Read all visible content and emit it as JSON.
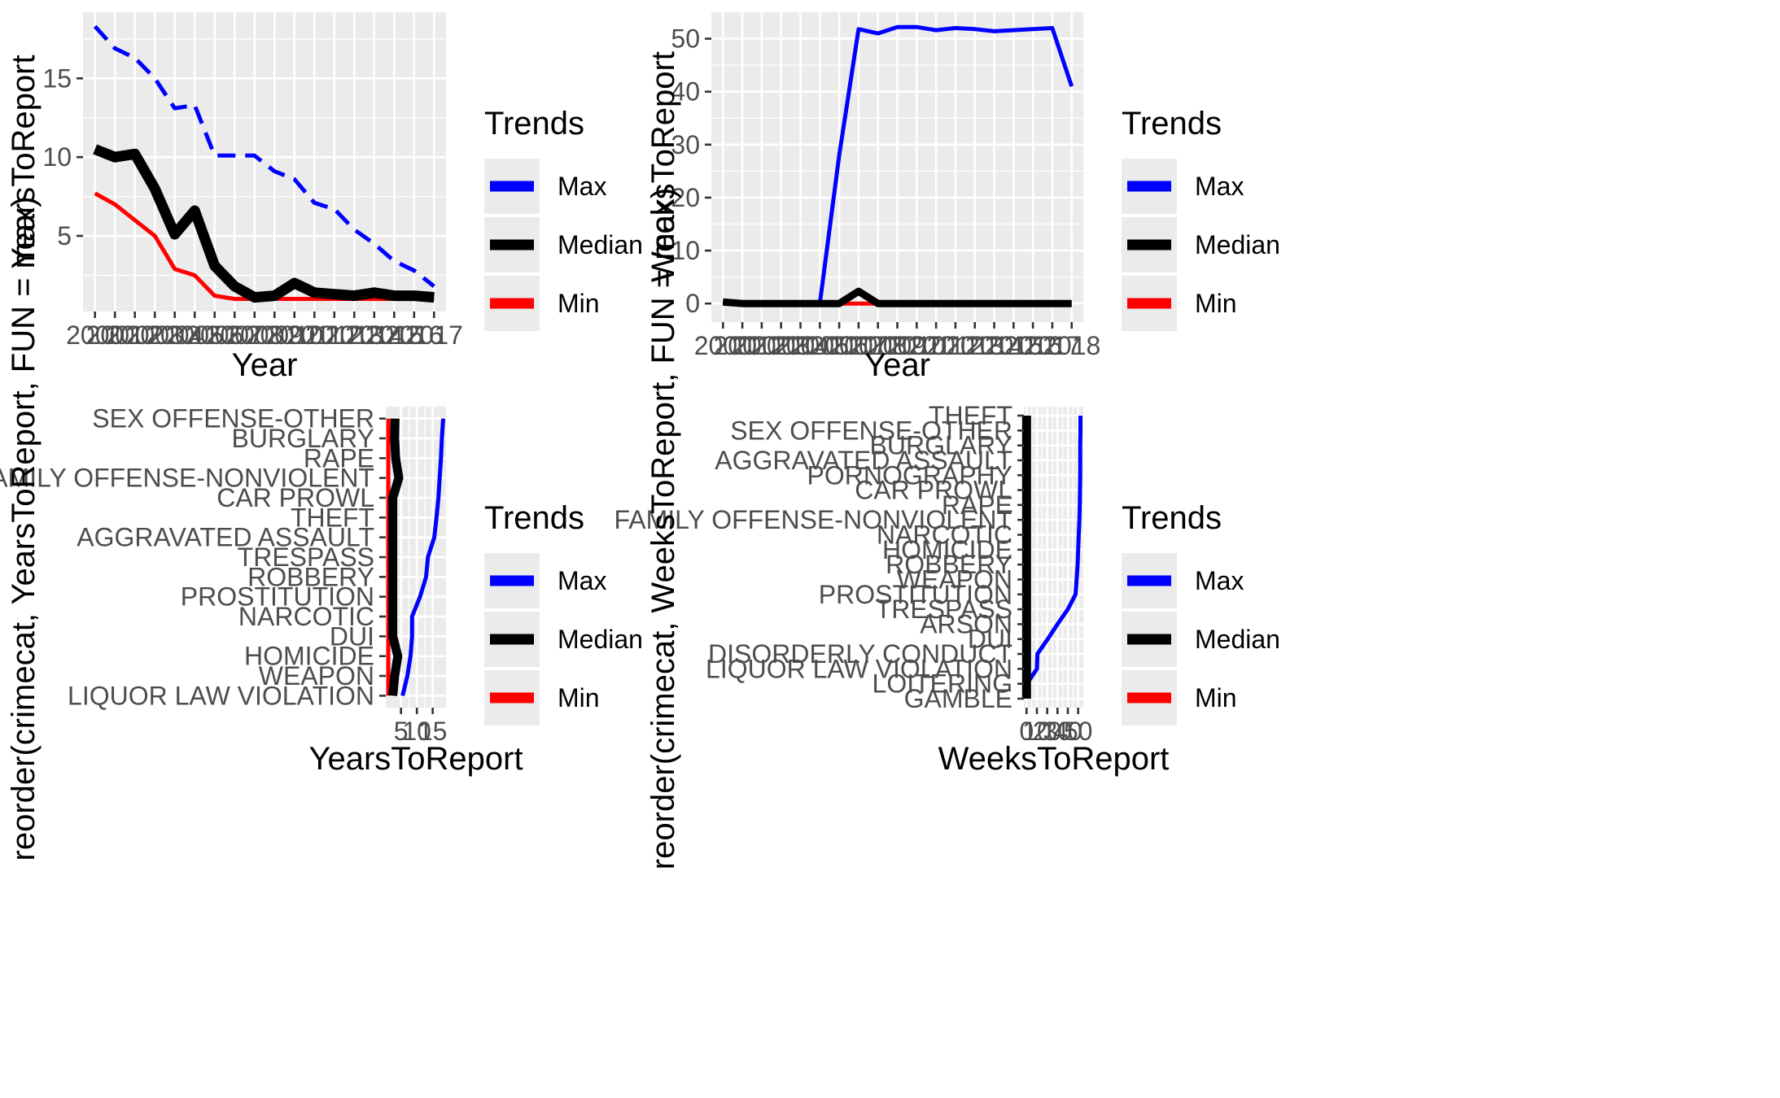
{
  "legend": {
    "title": "Trends",
    "items": [
      {
        "label": "Max",
        "color": "#0000FF"
      },
      {
        "label": "Median",
        "color": "#000000"
      },
      {
        "label": "Min",
        "color": "#FF0000"
      }
    ]
  },
  "chart_data": [
    {
      "type": "line",
      "xlabel": "Year",
      "ylabel": "YearsToReport",
      "x": [
        2000,
        2001,
        2002,
        2003,
        2004,
        2005,
        2006,
        2007,
        2008,
        2009,
        2010,
        2011,
        2012,
        2013,
        2014,
        2015,
        2016,
        2017
      ],
      "xticks": [
        "2000",
        "2001",
        "2002",
        "2003",
        "2004",
        "2005",
        "2006",
        "2007",
        "2008",
        "2009",
        "2010",
        "2011",
        "2012",
        "2013",
        "2014",
        "2015",
        "2016",
        "2017"
      ],
      "yticks": [
        5,
        10,
        15
      ],
      "ylim": [
        0.2,
        19.2
      ],
      "series": [
        {
          "name": "Max",
          "color": "#0000FF",
          "dash": true,
          "values": [
            18.3,
            16.9,
            16.3,
            15.0,
            13.1,
            13.3,
            10.1,
            10.1,
            10.1,
            9.1,
            8.6,
            7.1,
            6.7,
            5.4,
            4.5,
            3.4,
            2.8,
            1.8
          ]
        },
        {
          "name": "Median",
          "color": "#000000",
          "dash": false,
          "values": [
            10.5,
            10.0,
            10.2,
            8.0,
            5.1,
            6.6,
            3.1,
            1.8,
            1.1,
            1.2,
            2.0,
            1.4,
            1.3,
            1.2,
            1.4,
            1.2,
            1.2,
            1.1
          ]
        },
        {
          "name": "Min",
          "color": "#FF0000",
          "dash": false,
          "values": [
            7.7,
            7.0,
            6.0,
            5.0,
            2.9,
            2.5,
            1.2,
            1.0,
            1.0,
            1.0,
            1.0,
            1.0,
            1.0,
            1.0,
            1.0,
            1.0,
            1.0,
            1.0
          ]
        }
      ]
    },
    {
      "type": "line",
      "xlabel": "Year",
      "ylabel": "WeeksToReport",
      "x": [
        2000,
        2001,
        2002,
        2003,
        2004,
        2005,
        2006,
        2007,
        2008,
        2009,
        2010,
        2011,
        2012,
        2013,
        2014,
        2015,
        2016,
        2017,
        2018
      ],
      "xticks": [
        "2000",
        "2001",
        "2002",
        "2003",
        "2004",
        "2005",
        "2006",
        "2007",
        "2008",
        "2009",
        "2010",
        "2011",
        "2012",
        "2013",
        "2014",
        "2015",
        "2016",
        "2017",
        "2018"
      ],
      "yticks": [
        0,
        10,
        20,
        30,
        40,
        50
      ],
      "ylim": [
        -3.5,
        55
      ],
      "series": [
        {
          "name": "Max",
          "color": "#0000FF",
          "dash": false,
          "values": [
            0.4,
            0.0,
            0.0,
            0.0,
            0.0,
            0.0,
            28.0,
            51.8,
            51.0,
            52.2,
            52.2,
            51.6,
            52.0,
            51.8,
            51.4,
            51.6,
            51.8,
            52.0,
            41.0
          ]
        },
        {
          "name": "Median",
          "color": "#000000",
          "dash": false,
          "values": [
            0.3,
            0.0,
            0.0,
            0.0,
            0.0,
            0.0,
            0.0,
            2.3,
            0.0,
            0.0,
            0.0,
            0.0,
            0.0,
            0.0,
            0.0,
            0.0,
            0.0,
            0.0,
            0.0
          ]
        },
        {
          "name": "Min",
          "color": "#FF0000",
          "dash": false,
          "values": [
            0.0,
            0.0,
            0.0,
            0.0,
            0.0,
            0.0,
            0.0,
            0.0,
            0.0,
            0.0,
            0.0,
            0.0,
            0.0,
            0.0,
            0.0,
            0.0,
            0.0,
            0.0,
            0.0
          ]
        }
      ]
    },
    {
      "type": "line",
      "orientation": "horizontal",
      "xlabel": "YearsToReport",
      "ylabel": "reorder(crimecat, YearsToReport, FUN = max)",
      "categories": [
        "SEX OFFENSE-OTHER",
        "BURGLARY",
        "RAPE",
        "FAMILY OFFENSE-NONVIOLENT",
        "CAR PROWL",
        "THEFT",
        "AGGRAVATED ASSAULT",
        "TRESPASS",
        "ROBBERY",
        "PROSTITUTION",
        "NARCOTIC",
        "DUI",
        "HOMICIDE",
        "WEAPON",
        "LIQUOR LAW VIOLATION"
      ],
      "xticks": [
        5,
        10,
        15
      ],
      "xlim": [
        0.2,
        19.2
      ],
      "series": [
        {
          "name": "Max",
          "color": "#0000FF",
          "dash": false,
          "values": [
            18.3,
            17.9,
            17.6,
            17.2,
            16.8,
            16.2,
            15.5,
            13.5,
            12.9,
            11.0,
            8.5,
            8.5,
            8.0,
            7.0,
            5.5
          ]
        },
        {
          "name": "Median",
          "color": "#000000",
          "dash": false,
          "values": [
            3.1,
            3.0,
            3.3,
            4.3,
            2.4,
            2.4,
            2.4,
            2.4,
            2.4,
            2.4,
            2.4,
            2.4,
            4.0,
            3.0,
            2.4
          ]
        },
        {
          "name": "Min",
          "color": "#FF0000",
          "dash": false,
          "values": [
            1.0,
            1.0,
            1.0,
            1.0,
            1.0,
            1.0,
            1.0,
            1.0,
            1.0,
            1.0,
            1.0,
            1.0,
            1.0,
            1.0,
            1.0
          ]
        }
      ]
    },
    {
      "type": "line",
      "orientation": "horizontal",
      "xlabel": "WeeksToReport",
      "ylabel": "reorder(crimecat, WeeksToReport, FUN = max)",
      "categories": [
        "THEFT",
        "SEX OFFENSE-OTHER",
        "BURGLARY",
        "AGGRAVATED ASSAULT",
        "PORNOGRAPHY",
        "CAR PROWL",
        "RAPE",
        "FAMILY OFFENSE-NONVIOLENT",
        "NARCOTIC",
        "HOMICIDE",
        "ROBBERY",
        "WEAPON",
        "PROSTITUTION",
        "TRESPASS",
        "ARSON",
        "DUI",
        "DISORDERLY CONDUCT",
        "LIQUOR LAW VIOLATION",
        "LOITERING",
        "GAMBLE"
      ],
      "xticks": [
        0,
        10,
        20,
        30,
        40,
        50
      ],
      "xticklabels": [
        "0",
        "10",
        "20",
        "30",
        "40",
        "50"
      ],
      "xlim": [
        -2.6,
        55
      ],
      "series": [
        {
          "name": "Max",
          "color": "#0000FF",
          "dash": false,
          "values": [
            52.2,
            52.2,
            52.0,
            52.0,
            52.0,
            51.8,
            51.6,
            51.2,
            50.6,
            50.0,
            49.5,
            48.5,
            47.5,
            40.0,
            30.0,
            20.5,
            10.5,
            10.0,
            0.3,
            0.0
          ]
        },
        {
          "name": "Median",
          "color": "#000000",
          "dash": false,
          "values": [
            0.0,
            0.0,
            0.0,
            0.0,
            0.0,
            0.0,
            0.0,
            0.0,
            0.0,
            0.0,
            0.0,
            0.0,
            0.0,
            0.0,
            0.0,
            0.0,
            0.0,
            0.0,
            0.0,
            0.0
          ]
        },
        {
          "name": "Min",
          "color": "#FF0000",
          "dash": false,
          "values": [
            0.0,
            0.0,
            0.0,
            0.0,
            0.0,
            0.0,
            0.0,
            0.0,
            0.0,
            0.0,
            0.0,
            0.0,
            0.0,
            0.0,
            0.0,
            0.0,
            0.0,
            0.0,
            0.0,
            0.0
          ]
        }
      ]
    }
  ]
}
